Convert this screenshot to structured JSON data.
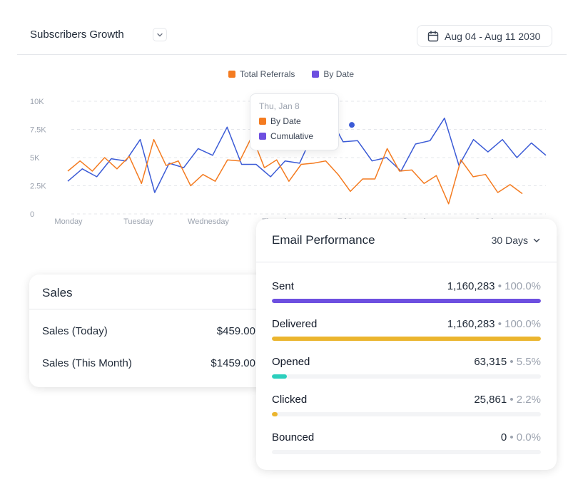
{
  "header": {
    "title": "Subscribers Growth",
    "date_range": "Aug 04 - Aug 11 2030"
  },
  "legend": [
    {
      "label": "Total Referrals",
      "color": "#f47b20"
    },
    {
      "label": "By Date",
      "color": "#6d4fe0"
    }
  ],
  "chart_data": {
    "type": "line",
    "y_ticks": [
      "10K",
      "7.5K",
      "5K",
      "2.5K",
      "0"
    ],
    "ylim": [
      0,
      10000
    ],
    "x_labels": [
      "Monday",
      "Tuesday",
      "Wednesday",
      "Thursday",
      "Friday",
      "Saturday",
      "Sunday"
    ],
    "series": [
      {
        "name": "By Date",
        "color": "#3b5bd6",
        "values": [
          2900,
          4000,
          3300,
          4900,
          4700,
          6600,
          1900,
          4500,
          4100,
          5800,
          5200,
          7700,
          4400,
          4400,
          3300,
          4700,
          4500,
          7300,
          8800,
          6400,
          6500,
          4700,
          5000,
          3800,
          6200,
          6500,
          8500,
          4300,
          6600,
          5500,
          6600,
          5000,
          6300,
          5200
        ]
      },
      {
        "name": "Total Referrals",
        "color": "#f47b20",
        "values": [
          3800,
          4700,
          3800,
          5000,
          4000,
          5100,
          2700,
          6600,
          4300,
          4700,
          2500,
          3500,
          2900,
          4800,
          4700,
          6900,
          4100,
          4800,
          2900,
          4400,
          4500,
          4700,
          3500,
          2000,
          3100,
          3100,
          5800,
          3800,
          3900,
          2700,
          3400,
          900,
          4800,
          3300,
          3500,
          1900,
          2600,
          1800
        ]
      }
    ],
    "highlight_point": {
      "series": "By Date",
      "value": 7900
    }
  },
  "tooltip": {
    "date": "Thu, Jan 8",
    "rows": [
      {
        "label": "By Date",
        "color": "#f47b20"
      },
      {
        "label": "Cumulative",
        "color": "#6d4fe0"
      }
    ]
  },
  "sales": {
    "title": "Sales",
    "rows": [
      {
        "label": "Sales (Today)",
        "value": "$459.00"
      },
      {
        "label": "Sales (This Month)",
        "value": "$1459.00"
      }
    ]
  },
  "email": {
    "title": "Email Performance",
    "range": "30 Days",
    "metrics": [
      {
        "label": "Sent",
        "value": "1,160,283",
        "pct": "100.0%",
        "fraction": 1.0,
        "color": "#6d4fe0"
      },
      {
        "label": "Delivered",
        "value": "1,160,283",
        "pct": "100.0%",
        "fraction": 1.0,
        "color": "#ebb52e"
      },
      {
        "label": "Opened",
        "value": "63,315",
        "pct": "5.5%",
        "fraction": 0.055,
        "color": "#2ccfbd"
      },
      {
        "label": "Clicked",
        "value": "25,861",
        "pct": "2.2%",
        "fraction": 0.022,
        "color": "#ebb52e"
      },
      {
        "label": "Bounced",
        "value": "0",
        "pct": "0.0%",
        "fraction": 0.0,
        "color": "#d1d5db"
      }
    ]
  },
  "icons": {
    "date": "calendar-icon",
    "title_dropdown": "chevron-down-icon",
    "range_dropdown": "chevron-down-icon"
  }
}
